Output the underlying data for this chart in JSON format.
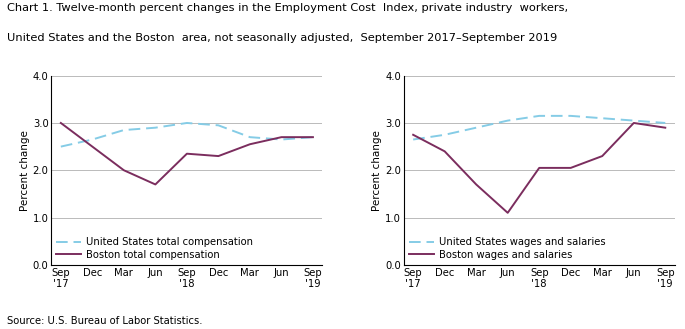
{
  "title_line1": "Chart 1. Twelve-month percent changes in the Employment Cost  Index, private industry  workers,",
  "title_line2": "United States and the Boston  area, not seasonally adjusted,  September 2017–September 2019",
  "source": "Source: U.S. Bureau of Labor Statistics.",
  "ylabel": "Percent change",
  "xlabels": [
    "Sep\n'17",
    "Dec",
    "Mar",
    "Jun",
    "Sep\n'18",
    "Dec",
    "Mar",
    "Jun",
    "Sep\n'19"
  ],
  "ylim": [
    0.0,
    4.0
  ],
  "yticks": [
    0.0,
    1.0,
    2.0,
    3.0,
    4.0
  ],
  "left_us": [
    2.5,
    2.65,
    2.85,
    2.9,
    3.0,
    2.95,
    2.7,
    2.65,
    2.7
  ],
  "left_boston": [
    3.0,
    2.5,
    2.0,
    1.7,
    2.35,
    2.3,
    2.55,
    2.7,
    2.7
  ],
  "right_us": [
    2.65,
    2.75,
    2.9,
    3.05,
    3.15,
    3.15,
    3.1,
    3.05,
    3.0
  ],
  "right_boston": [
    2.75,
    2.4,
    1.7,
    1.1,
    2.05,
    2.05,
    2.3,
    3.0,
    2.9
  ],
  "us_color": "#85cce6",
  "boston_color": "#7b2d5e",
  "left_legend_us": "United States total compensation",
  "left_legend_boston": "Boston total compensation",
  "right_legend_us": "United States wages and salaries",
  "right_legend_boston": "Boston wages and salaries",
  "grid_color": "#a0a0a0",
  "title_fontsize": 8.2,
  "axis_label_fontsize": 7.5,
  "tick_fontsize": 7.2,
  "legend_fontsize": 7.2,
  "source_fontsize": 7.2
}
